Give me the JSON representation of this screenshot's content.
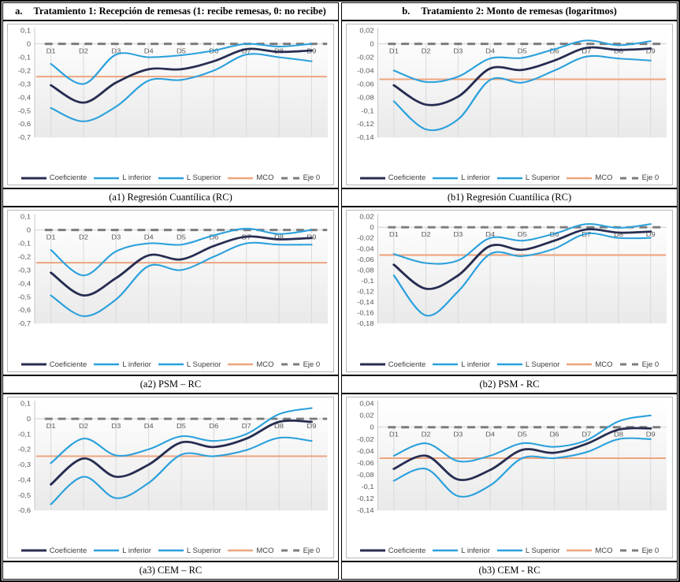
{
  "columns": [
    {
      "header_label": "a.",
      "header_title": "Tratamiento 1: Recepción de remesas (1: recibe remesas, 0: no recibe)"
    },
    {
      "header_label": "b.",
      "header_title": "Tratamiento 2: Monto de remesas (logaritmos)"
    }
  ],
  "legend": {
    "items": [
      {
        "label": "Coeficiente",
        "color": "#272D51",
        "style": "solid",
        "width": 3
      },
      {
        "label": "L inferior",
        "color": "#2AA0DC",
        "style": "solid",
        "width": 2.5
      },
      {
        "label": "L Superior",
        "color": "#2AA0DC",
        "style": "solid",
        "width": 2.5
      },
      {
        "label": "MCO",
        "color": "#EDA57F",
        "style": "solid",
        "width": 2.5
      },
      {
        "label": "Eje 0",
        "color": "#7C7C7C",
        "style": "dash",
        "width": 3
      }
    ]
  },
  "colors": {
    "coeficiente": "#272D51",
    "limites": "#2AA0DC",
    "mco": "#EDA57F",
    "eje0": "#7C7C7C",
    "grid": "#D9D9D9",
    "tick_text": "#595959"
  },
  "chart_data": [
    {
      "id": "a1",
      "type": "line",
      "caption": "(a1) Regresión Cuantílica (RC)",
      "x": [
        "D1",
        "D2",
        "D3",
        "D4",
        "D5",
        "D6",
        "D7",
        "D8",
        "D9"
      ],
      "ymax": 0.1,
      "ymin": -0.7,
      "ystep": 0.1,
      "ylabels": [
        "0,1",
        "0",
        "-0,1",
        "-0,2",
        "-0,3",
        "-0,4",
        "-0,5",
        "-0,6",
        "-0,7"
      ],
      "mco": -0.245,
      "eje0": 0,
      "series": [
        {
          "name": "Coeficiente",
          "color": "#272D51",
          "values": [
            -0.31,
            -0.44,
            -0.29,
            -0.19,
            -0.19,
            -0.13,
            -0.04,
            -0.06,
            -0.05
          ]
        },
        {
          "name": "L inferior",
          "color": "#2AA0DC",
          "values": [
            -0.48,
            -0.58,
            -0.47,
            -0.275,
            -0.27,
            -0.2,
            -0.08,
            -0.1,
            -0.13
          ]
        },
        {
          "name": "L Superior",
          "color": "#2AA0DC",
          "values": [
            -0.15,
            -0.3,
            -0.08,
            -0.1,
            -0.085,
            -0.05,
            0.0,
            -0.02,
            0.0
          ]
        }
      ]
    },
    {
      "id": "b1",
      "type": "line",
      "caption": "(b1) Regresión Cuantílica (RC)",
      "x": [
        "D1",
        "D2",
        "D3",
        "D4",
        "D5",
        "D6",
        "D7",
        "D8",
        "D9"
      ],
      "ymax": 0.02,
      "ymin": -0.14,
      "ystep": 0.02,
      "ylabels": [
        "0,02",
        "0",
        "-0,02",
        "-0,04",
        "-0,06",
        "-0,08",
        "-0,1",
        "-0,12",
        "-0,14"
      ],
      "mco": -0.053,
      "eje0": 0,
      "series": [
        {
          "name": "Coeficiente",
          "color": "#272D51",
          "values": [
            -0.062,
            -0.091,
            -0.079,
            -0.037,
            -0.039,
            -0.025,
            -0.006,
            -0.009,
            -0.007
          ]
        },
        {
          "name": "L inferior",
          "color": "#2AA0DC",
          "values": [
            -0.086,
            -0.128,
            -0.113,
            -0.054,
            -0.058,
            -0.04,
            -0.019,
            -0.022,
            -0.025
          ]
        },
        {
          "name": "L Superior",
          "color": "#2AA0DC",
          "values": [
            -0.04,
            -0.057,
            -0.049,
            -0.022,
            -0.021,
            -0.008,
            0.005,
            -0.002,
            0.004
          ]
        }
      ]
    },
    {
      "id": "a2",
      "type": "line",
      "caption": "(a2) PSM – RC",
      "x": [
        "D1",
        "D2",
        "D3",
        "D4",
        "D5",
        "D6",
        "D7",
        "D8",
        "D9"
      ],
      "ymax": 0.1,
      "ymin": -0.7,
      "ystep": 0.1,
      "ylabels": [
        "0,1",
        "0",
        "-0,1",
        "-0,2",
        "-0,3",
        "-0,4",
        "-0,5",
        "-0,6",
        "-0,7"
      ],
      "mco": -0.245,
      "eje0": 0,
      "series": [
        {
          "name": "Coeficiente",
          "color": "#272D51",
          "values": [
            -0.32,
            -0.49,
            -0.36,
            -0.19,
            -0.22,
            -0.12,
            -0.05,
            -0.07,
            -0.06
          ]
        },
        {
          "name": "L inferior",
          "color": "#2AA0DC",
          "values": [
            -0.49,
            -0.645,
            -0.52,
            -0.27,
            -0.3,
            -0.2,
            -0.1,
            -0.11,
            -0.11
          ]
        },
        {
          "name": "L Superior",
          "color": "#2AA0DC",
          "values": [
            -0.15,
            -0.34,
            -0.16,
            -0.1,
            -0.11,
            -0.04,
            0.01,
            -0.03,
            0.0
          ]
        }
      ]
    },
    {
      "id": "b2",
      "type": "line",
      "caption": "(b2) PSM - RC",
      "x": [
        "D1",
        "D2",
        "D3",
        "D4",
        "D5",
        "D6",
        "D7",
        "D8",
        "D9"
      ],
      "ymax": 0.02,
      "ymin": -0.18,
      "ystep": 0.02,
      "ylabels": [
        "0,02",
        "0",
        "-0,02",
        "-0,04",
        "-0,06",
        "-0,08",
        "-0,1",
        "-0,12",
        "-0,14",
        "-0,16",
        "-0,18"
      ],
      "mco": -0.052,
      "eje0": 0,
      "series": [
        {
          "name": "Coeficiente",
          "color": "#272D51",
          "values": [
            -0.07,
            -0.115,
            -0.09,
            -0.035,
            -0.042,
            -0.025,
            -0.004,
            -0.01,
            -0.008
          ]
        },
        {
          "name": "L inferior",
          "color": "#2AA0DC",
          "values": [
            -0.09,
            -0.165,
            -0.12,
            -0.05,
            -0.054,
            -0.04,
            -0.012,
            -0.02,
            -0.02
          ]
        },
        {
          "name": "L Superior",
          "color": "#2AA0DC",
          "values": [
            -0.05,
            -0.067,
            -0.062,
            -0.02,
            -0.025,
            -0.012,
            0.006,
            -0.001,
            0.006
          ]
        }
      ]
    },
    {
      "id": "a3",
      "type": "line",
      "caption": "(a3) CEM – RC",
      "x": [
        "D1",
        "D2",
        "D3",
        "D4",
        "D5",
        "D6",
        "D7",
        "D8",
        "D9"
      ],
      "ymax": 0.1,
      "ymin": -0.6,
      "ystep": 0.1,
      "ylabels": [
        "0,1",
        "0",
        "-0,1",
        "-0,2",
        "-0,3",
        "-0,4",
        "-0,5",
        "-0,6"
      ],
      "mco": -0.245,
      "eje0": 0,
      "series": [
        {
          "name": "Coeficiente",
          "color": "#272D51",
          "values": [
            -0.43,
            -0.26,
            -0.38,
            -0.3,
            -0.155,
            -0.185,
            -0.13,
            -0.02,
            -0.02
          ]
        },
        {
          "name": "L inferior",
          "color": "#2AA0DC",
          "values": [
            -0.56,
            -0.38,
            -0.52,
            -0.42,
            -0.235,
            -0.245,
            -0.205,
            -0.125,
            -0.145
          ]
        },
        {
          "name": "L Superior",
          "color": "#2AA0DC",
          "values": [
            -0.29,
            -0.13,
            -0.24,
            -0.2,
            -0.115,
            -0.145,
            -0.1,
            0.03,
            0.07
          ]
        }
      ]
    },
    {
      "id": "b3",
      "type": "line",
      "caption": "(b3) CEM - RC",
      "x": [
        "D1",
        "D2",
        "D3",
        "D4",
        "D5",
        "D6",
        "D7",
        "D8",
        "D9"
      ],
      "ymax": 0.04,
      "ymin": -0.14,
      "ystep": 0.02,
      "ylabels": [
        "0,04",
        "0,02",
        "0",
        "-0,02",
        "-0,04",
        "-0,06",
        "-0,08",
        "-0,1",
        "-0,12",
        "-0,14"
      ],
      "mco": -0.052,
      "eje0": 0,
      "series": [
        {
          "name": "Coeficiente",
          "color": "#272D51",
          "values": [
            -0.07,
            -0.048,
            -0.088,
            -0.072,
            -0.038,
            -0.043,
            -0.028,
            -0.004,
            -0.002
          ]
        },
        {
          "name": "L inferior",
          "color": "#2AA0DC",
          "values": [
            -0.09,
            -0.07,
            -0.116,
            -0.098,
            -0.052,
            -0.052,
            -0.042,
            -0.02,
            -0.02
          ]
        },
        {
          "name": "L Superior",
          "color": "#2AA0DC",
          "values": [
            -0.048,
            -0.027,
            -0.057,
            -0.048,
            -0.027,
            -0.033,
            -0.022,
            0.01,
            0.02
          ]
        }
      ]
    }
  ]
}
